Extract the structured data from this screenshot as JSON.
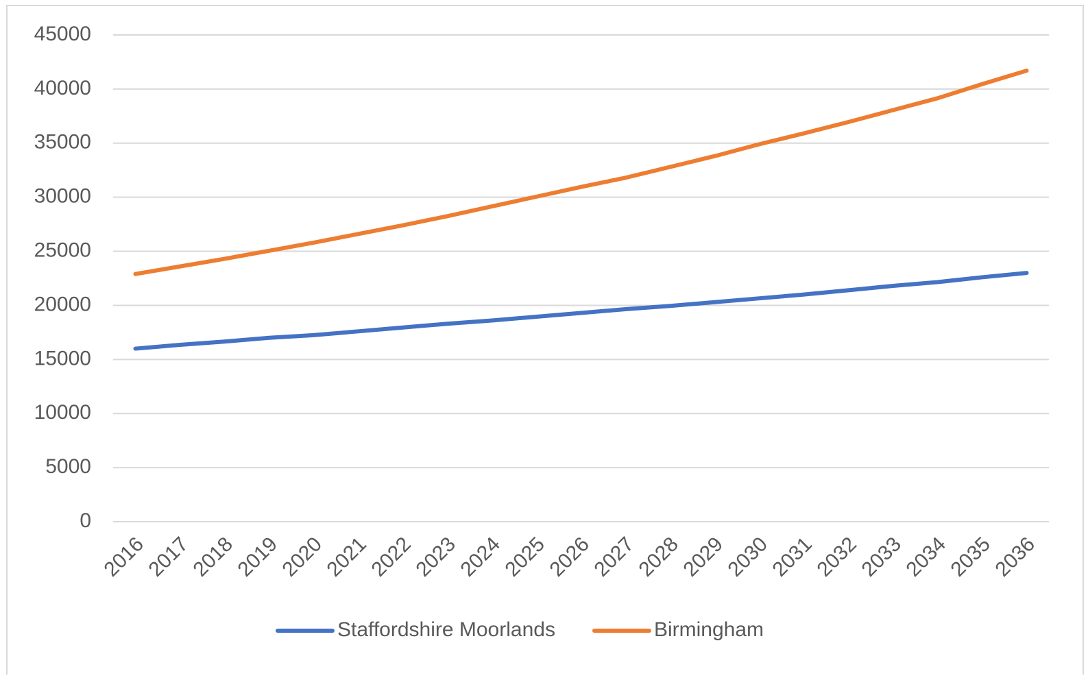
{
  "chart_data": {
    "type": "line",
    "categories": [
      "2016",
      "2017",
      "2018",
      "2019",
      "2020",
      "2021",
      "2022",
      "2023",
      "2024",
      "2025",
      "2026",
      "2027",
      "2028",
      "2029",
      "2030",
      "2031",
      "2032",
      "2033",
      "2034",
      "2035",
      "2036"
    ],
    "series": [
      {
        "name": "Staffordshire Moorlands",
        "color": "#4472c4",
        "values": [
          16000,
          16350,
          16650,
          17000,
          17250,
          17600,
          17950,
          18300,
          18600,
          18950,
          19300,
          19650,
          19950,
          20300,
          20650,
          21000,
          21400,
          21800,
          22150,
          22600,
          23000
        ]
      },
      {
        "name": "Birmingham",
        "color": "#ed7d31",
        "values": [
          22900,
          23600,
          24300,
          25050,
          25800,
          26600,
          27400,
          28250,
          29150,
          30050,
          30950,
          31800,
          32800,
          33800,
          34900,
          35900,
          36950,
          38050,
          39150,
          40450,
          41700
        ]
      }
    ],
    "ylim": [
      0,
      45000
    ],
    "yticks": [
      0,
      5000,
      10000,
      15000,
      20000,
      25000,
      30000,
      35000,
      40000,
      45000
    ],
    "grid": true,
    "legend": "bottom"
  }
}
